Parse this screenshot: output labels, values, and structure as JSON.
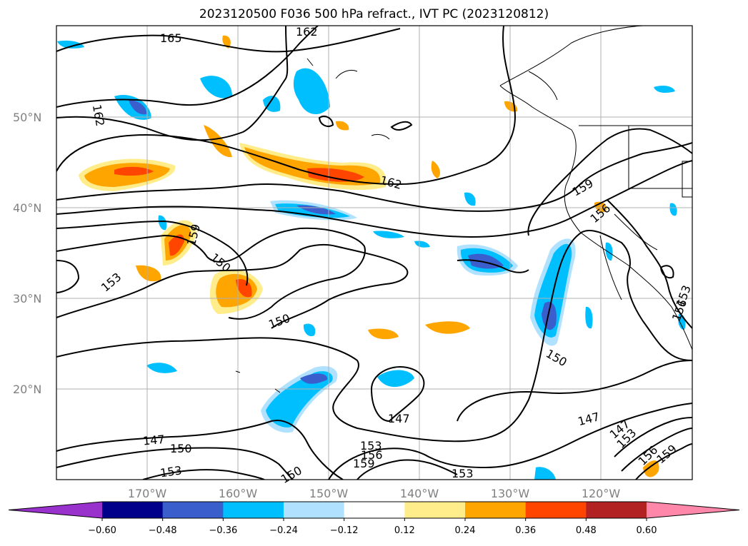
{
  "title": "2023120500 F036 500 hPa refract., IVT PC (2023120812)",
  "lat_labels": [
    "50°N",
    "40°N",
    "30°N",
    "20°N"
  ],
  "lon_labels": [
    "170°W",
    "160°W",
    "150°W",
    "140°W",
    "130°W",
    "120°W"
  ],
  "contour_labels": [
    {
      "text": "165"
    },
    {
      "text": "162"
    },
    {
      "text": "162"
    },
    {
      "text": "162"
    },
    {
      "text": "159"
    },
    {
      "text": "159"
    },
    {
      "text": "156"
    },
    {
      "text": "153"
    },
    {
      "text": "150"
    },
    {
      "text": "150"
    },
    {
      "text": "147"
    },
    {
      "text": "147"
    },
    {
      "text": "147"
    },
    {
      "text": "150"
    },
    {
      "text": "153"
    },
    {
      "text": "150"
    },
    {
      "text": "153"
    },
    {
      "text": "156"
    },
    {
      "text": "159"
    },
    {
      "text": "153"
    },
    {
      "text": "147"
    },
    {
      "text": "150"
    },
    {
      "text": "153"
    },
    {
      "text": "156"
    },
    {
      "text": "159"
    },
    {
      "text": "156"
    },
    {
      "text": "153"
    }
  ],
  "colorbar": {
    "colors": [
      "#9932cc",
      "#00008b",
      "#3a5fcd",
      "#00bfff",
      "#b0e2ff",
      "#ffffff",
      "#ffec8b",
      "#ffa500",
      "#ff4500",
      "#b22222",
      "#ff88aa"
    ],
    "ticks": [
      "−0.60",
      "−0.48",
      "−0.36",
      "−0.24",
      "−0.12",
      "0.12",
      "0.24",
      "0.36",
      "0.48",
      "0.60"
    ]
  }
}
